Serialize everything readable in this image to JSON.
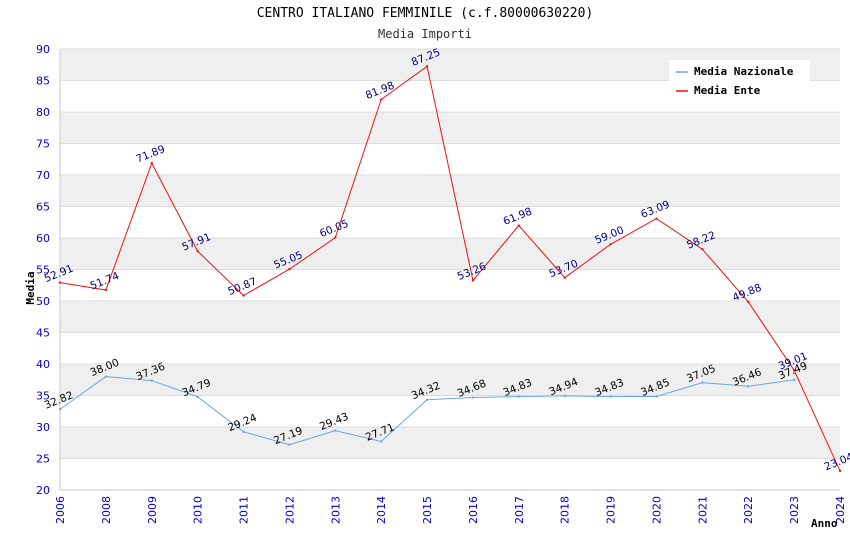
{
  "chart_data": {
    "type": "line",
    "title": "CENTRO ITALIANO FEMMINILE (c.f.80000630220)",
    "subtitle": "Media Importi",
    "ylabel": "Media",
    "xlabel": "Anno",
    "ylim": [
      20,
      90
    ],
    "yticks": [
      "20",
      "25",
      "30",
      "35",
      "40",
      "45",
      "50",
      "55",
      "60",
      "65",
      "70",
      "75",
      "80",
      "85",
      "90"
    ],
    "categories": [
      "2006",
      "2008",
      "2009",
      "2010",
      "2011",
      "2012",
      "2013",
      "2014",
      "2015",
      "2016",
      "2017",
      "2018",
      "2019",
      "2020",
      "2021",
      "2022",
      "2023",
      "2024"
    ],
    "grid": true,
    "legend_position": "top-right",
    "series": [
      {
        "name": "Media Nazionale",
        "color": "#6aa8e6",
        "label_color": "#000000",
        "values": [
          32.82,
          38.0,
          37.36,
          34.79,
          29.24,
          27.19,
          29.43,
          27.71,
          34.32,
          34.68,
          34.83,
          34.94,
          34.83,
          34.85,
          37.05,
          36.46,
          37.49,
          null
        ],
        "labels": [
          "32.82",
          "38.00",
          "37.36",
          "34.79",
          "29.24",
          "27.19",
          "29.43",
          "27.71",
          "34.32",
          "34.68",
          "34.83",
          "34.94",
          "34.83",
          "34.85",
          "37.05",
          "36.46",
          "37.49",
          ""
        ]
      },
      {
        "name": "Media Ente",
        "color": "#ee1111",
        "label_color": "#000080",
        "values": [
          52.91,
          51.74,
          71.89,
          57.91,
          50.87,
          55.05,
          60.05,
          81.98,
          87.25,
          53.26,
          61.98,
          53.7,
          59.0,
          63.09,
          58.22,
          49.88,
          39.01,
          23.04
        ],
        "labels": [
          "52.91",
          "51.74",
          "71.89",
          "57.91",
          "50.87",
          "55.05",
          "60.05",
          "81.98",
          "87.25",
          "53.26",
          "61.98",
          "53.70",
          "59.00",
          "63.09",
          "58.22",
          "49.88",
          "39.01",
          "23.04"
        ]
      }
    ]
  },
  "colors": {
    "axis_tick_text": "#0000cc",
    "band": "#efefef",
    "gridline": "#dcdcdc"
  }
}
